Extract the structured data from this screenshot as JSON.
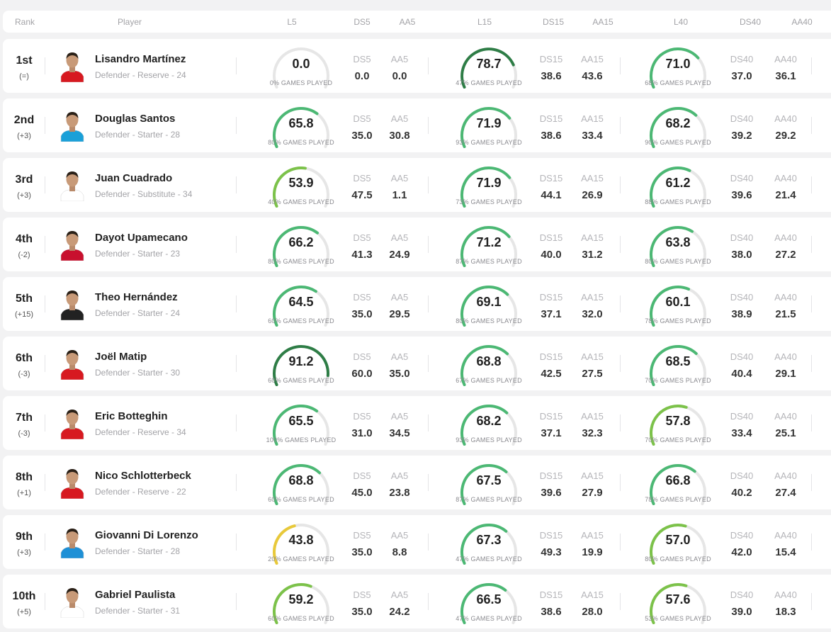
{
  "header": {
    "rank": "Rank",
    "player": "Player",
    "l5": "L5",
    "ds5": "DS5",
    "aa5": "AA5",
    "l15": "L15",
    "ds15": "DS15",
    "aa15": "AA15",
    "l40": "L40",
    "ds40": "DS40",
    "aa40": "AA40"
  },
  "colors": {
    "dark_green": "#2e7d46",
    "green": "#4cb874",
    "light_green": "#7cc24a",
    "yellow": "#e8c93a",
    "track": "#e6e6e6"
  },
  "rows": [
    {
      "rank": "1st",
      "delta": "(=)",
      "name": "Lisandro Martínez",
      "info": "Defender - Reserve - 24",
      "shirt": "#d71920",
      "l5": {
        "value": "0.0",
        "pct": "0% GAMES PLAYED",
        "level": 0,
        "color": "#4cb874"
      },
      "ds5": "0.0",
      "aa5": "0.0",
      "l15": {
        "value": "78.7",
        "pct": "47% GAMES PLAYED",
        "level": 0.787,
        "color": "#2e7d46"
      },
      "ds15": "38.6",
      "aa15": "43.6",
      "l40": {
        "value": "71.0",
        "pct": "68% GAMES PLAYED",
        "level": 0.71,
        "color": "#4cb874"
      },
      "ds40": "37.0",
      "aa40": "36.1"
    },
    {
      "rank": "2nd",
      "delta": "(+3)",
      "name": "Douglas Santos",
      "info": "Defender - Starter - 28",
      "shirt": "#1aa0d8",
      "l5": {
        "value": "65.8",
        "pct": "80% GAMES PLAYED",
        "level": 0.658,
        "color": "#4cb874"
      },
      "ds5": "35.0",
      "aa5": "30.8",
      "l15": {
        "value": "71.9",
        "pct": "93% GAMES PLAYED",
        "level": 0.719,
        "color": "#4cb874"
      },
      "ds15": "38.6",
      "aa15": "33.4",
      "l40": {
        "value": "68.2",
        "pct": "90% GAMES PLAYED",
        "level": 0.682,
        "color": "#4cb874"
      },
      "ds40": "39.2",
      "aa40": "29.2"
    },
    {
      "rank": "3rd",
      "delta": "(+3)",
      "name": "Juan Cuadrado",
      "info": "Defender - Substitute - 34",
      "shirt": "#ffffff",
      "l5": {
        "value": "53.9",
        "pct": "40% GAMES PLAYED",
        "level": 0.539,
        "color": "#7cc24a"
      },
      "ds5": "47.5",
      "aa5": "1.1",
      "l15": {
        "value": "71.9",
        "pct": "73% GAMES PLAYED",
        "level": 0.719,
        "color": "#4cb874"
      },
      "ds15": "44.1",
      "aa15": "26.9",
      "l40": {
        "value": "61.2",
        "pct": "88% GAMES PLAYED",
        "level": 0.612,
        "color": "#4cb874"
      },
      "ds40": "39.6",
      "aa40": "21.4"
    },
    {
      "rank": "4th",
      "delta": "(-2)",
      "name": "Dayot Upamecano",
      "info": "Defender - Starter - 23",
      "shirt": "#c8102e",
      "l5": {
        "value": "66.2",
        "pct": "80% GAMES PLAYED",
        "level": 0.662,
        "color": "#4cb874"
      },
      "ds5": "41.3",
      "aa5": "24.9",
      "l15": {
        "value": "71.2",
        "pct": "87% GAMES PLAYED",
        "level": 0.712,
        "color": "#4cb874"
      },
      "ds15": "40.0",
      "aa15": "31.2",
      "l40": {
        "value": "63.8",
        "pct": "80% GAMES PLAYED",
        "level": 0.638,
        "color": "#4cb874"
      },
      "ds40": "38.0",
      "aa40": "27.2"
    },
    {
      "rank": "5th",
      "delta": "(+15)",
      "name": "Theo Hernández",
      "info": "Defender - Starter - 24",
      "shirt": "#222222",
      "l5": {
        "value": "64.5",
        "pct": "60% GAMES PLAYED",
        "level": 0.645,
        "color": "#4cb874"
      },
      "ds5": "35.0",
      "aa5": "29.5",
      "l15": {
        "value": "69.1",
        "pct": "80% GAMES PLAYED",
        "level": 0.691,
        "color": "#4cb874"
      },
      "ds15": "37.1",
      "aa15": "32.0",
      "l40": {
        "value": "60.1",
        "pct": "78% GAMES PLAYED",
        "level": 0.601,
        "color": "#4cb874"
      },
      "ds40": "38.9",
      "aa40": "21.5"
    },
    {
      "rank": "6th",
      "delta": "(-3)",
      "name": "Joël Matip",
      "info": "Defender - Starter - 30",
      "shirt": "#d71920",
      "l5": {
        "value": "91.2",
        "pct": "60% GAMES PLAYED",
        "level": 0.912,
        "color": "#2e7d46"
      },
      "ds5": "60.0",
      "aa5": "35.0",
      "l15": {
        "value": "68.8",
        "pct": "67% GAMES PLAYED",
        "level": 0.688,
        "color": "#4cb874"
      },
      "ds15": "42.5",
      "aa15": "27.5",
      "l40": {
        "value": "68.5",
        "pct": "70% GAMES PLAYED",
        "level": 0.685,
        "color": "#4cb874"
      },
      "ds40": "40.4",
      "aa40": "29.1"
    },
    {
      "rank": "7th",
      "delta": "(-3)",
      "name": "Eric Botteghin",
      "info": "Defender - Reserve - 34",
      "shirt": "#d71920",
      "l5": {
        "value": "65.5",
        "pct": "100% GAMES PLAYED",
        "level": 0.655,
        "color": "#4cb874"
      },
      "ds5": "31.0",
      "aa5": "34.5",
      "l15": {
        "value": "68.2",
        "pct": "93% GAMES PLAYED",
        "level": 0.682,
        "color": "#4cb874"
      },
      "ds15": "37.1",
      "aa15": "32.3",
      "l40": {
        "value": "57.8",
        "pct": "70% GAMES PLAYED",
        "level": 0.578,
        "color": "#7cc24a"
      },
      "ds40": "33.4",
      "aa40": "25.1"
    },
    {
      "rank": "8th",
      "delta": "(+1)",
      "name": "Nico Schlotterbeck",
      "info": "Defender - Reserve - 22",
      "shirt": "#d71920",
      "l5": {
        "value": "68.8",
        "pct": "60% GAMES PLAYED",
        "level": 0.688,
        "color": "#4cb874"
      },
      "ds5": "45.0",
      "aa5": "23.8",
      "l15": {
        "value": "67.5",
        "pct": "87% GAMES PLAYED",
        "level": 0.675,
        "color": "#4cb874"
      },
      "ds15": "39.6",
      "aa15": "27.9",
      "l40": {
        "value": "66.8",
        "pct": "78% GAMES PLAYED",
        "level": 0.668,
        "color": "#4cb874"
      },
      "ds40": "40.2",
      "aa40": "27.4"
    },
    {
      "rank": "9th",
      "delta": "(+3)",
      "name": "Giovanni Di Lorenzo",
      "info": "Defender - Starter - 28",
      "shirt": "#1e90d6",
      "l5": {
        "value": "43.8",
        "pct": "20% GAMES PLAYED",
        "level": 0.438,
        "color": "#e8c93a"
      },
      "ds5": "35.0",
      "aa5": "8.8",
      "l15": {
        "value": "67.3",
        "pct": "47% GAMES PLAYED",
        "level": 0.673,
        "color": "#4cb874"
      },
      "ds15": "49.3",
      "aa15": "19.9",
      "l40": {
        "value": "57.0",
        "pct": "80% GAMES PLAYED",
        "level": 0.57,
        "color": "#7cc24a"
      },
      "ds40": "42.0",
      "aa40": "15.4"
    },
    {
      "rank": "10th",
      "delta": "(+5)",
      "name": "Gabriel Paulista",
      "info": "Defender - Starter - 31",
      "shirt": "#ffffff",
      "l5": {
        "value": "59.2",
        "pct": "60% GAMES PLAYED",
        "level": 0.592,
        "color": "#7cc24a"
      },
      "ds5": "35.0",
      "aa5": "24.2",
      "l15": {
        "value": "66.5",
        "pct": "47% GAMES PLAYED",
        "level": 0.665,
        "color": "#4cb874"
      },
      "ds15": "38.6",
      "aa15": "28.0",
      "l40": {
        "value": "57.6",
        "pct": "53% GAMES PLAYED",
        "level": 0.576,
        "color": "#7cc24a"
      },
      "ds40": "39.0",
      "aa40": "18.3"
    }
  ]
}
